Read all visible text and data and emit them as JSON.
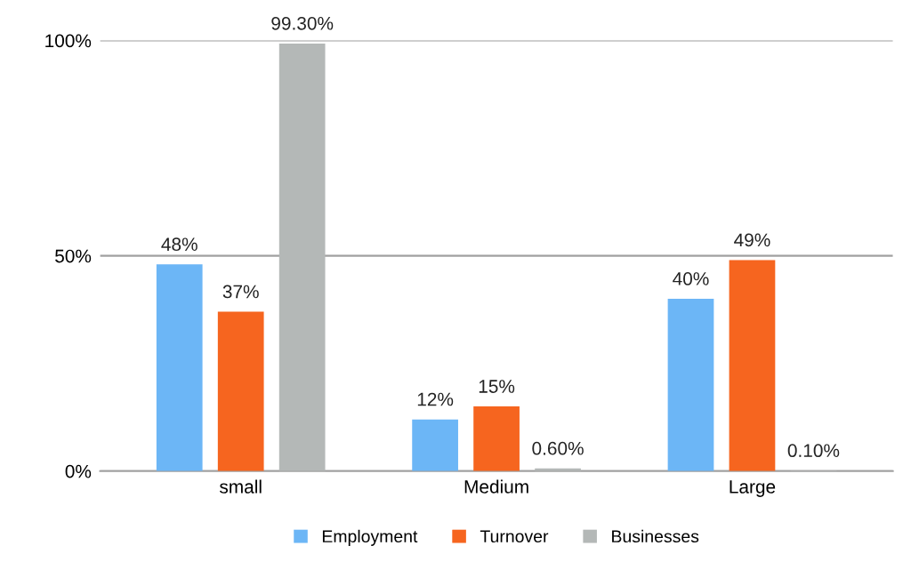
{
  "chart_data": {
    "type": "bar",
    "categories": [
      "small",
      "Medium",
      "Large"
    ],
    "series": [
      {
        "name": "Employment",
        "color": "#6cb6f6",
        "values": [
          48,
          12,
          40
        ],
        "value_labels": [
          "48%",
          "12%",
          "40%"
        ]
      },
      {
        "name": "Turnover",
        "color": "#f6651f",
        "values": [
          37,
          15,
          49
        ],
        "value_labels": [
          "37%",
          "15%",
          "49%"
        ]
      },
      {
        "name": "Businesses",
        "color": "#b4b8b7",
        "values": [
          99.3,
          0.6,
          0.1
        ],
        "value_labels": [
          "99.30%",
          "0.60%",
          "0.10%"
        ]
      }
    ],
    "ylim": [
      0,
      100
    ],
    "yticks": [
      {
        "value": 0,
        "label": "0%"
      },
      {
        "value": 50,
        "label": "50%"
      },
      {
        "value": 100,
        "label": "100%"
      }
    ],
    "grid": "y",
    "legend": "bottom"
  }
}
